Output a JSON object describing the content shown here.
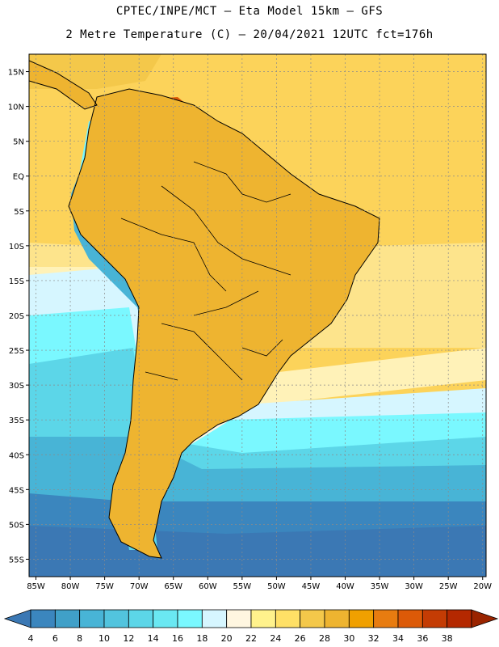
{
  "header": {
    "title_line1": "CPTEC/INPE/MCT –  Eta Model 15km – GFS",
    "title_line2": "2 Metre Temperature (C) – 20/04/2021 12UTC fct=176h"
  },
  "map": {
    "lat_labels": [
      "15N",
      "10N",
      "5N",
      "EQ",
      "5S",
      "10S",
      "15S",
      "20S",
      "25S",
      "30S",
      "35S",
      "40S",
      "45S",
      "50S",
      "55S"
    ],
    "lon_labels": [
      "85W",
      "80W",
      "75W",
      "70W",
      "65W",
      "60W",
      "55W",
      "50W",
      "45W",
      "40W",
      "35W",
      "30W",
      "25W",
      "20W"
    ],
    "lat_range": [
      17.5,
      -57.5
    ],
    "lon_range": [
      -86,
      -19.5
    ],
    "grid_color": "#8a8a8a",
    "coast_color": "#000000"
  },
  "colorbar": {
    "labels": [
      "4",
      "6",
      "8",
      "10",
      "12",
      "14",
      "16",
      "18",
      "20",
      "22",
      "24",
      "26",
      "28",
      "30",
      "32",
      "34",
      "36",
      "38"
    ],
    "colors": [
      "#3b78b4",
      "#3b86be",
      "#40a0c8",
      "#48b4d6",
      "#52c4de",
      "#5cd6e8",
      "#6ae8f2",
      "#7af8ff",
      "#d6f6ff",
      "#fff6e0",
      "#fff28c",
      "#ffe066",
      "#f4c84a",
      "#eeb430",
      "#f0a000",
      "#e87c10",
      "#dc5a08",
      "#c43c04",
      "#b42800",
      "#9a2400"
    ]
  }
}
